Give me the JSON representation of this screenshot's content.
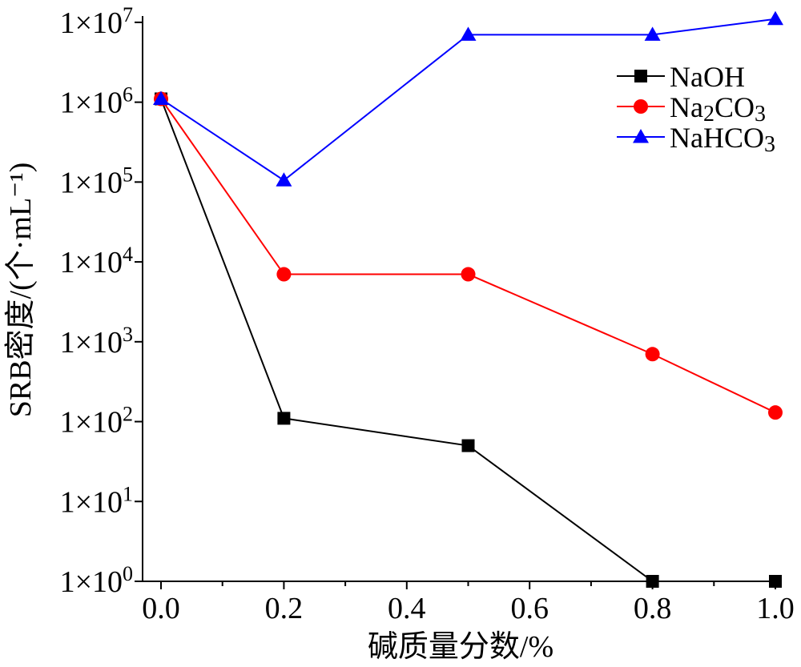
{
  "chart_data": {
    "type": "line",
    "xlabel": "碱质量分数/%",
    "ylabel": "SRB密度/(个·mL⁻¹)",
    "x_scale": "linear",
    "y_scale": "log",
    "xlim": [
      -0.03,
      1.0
    ],
    "ylim": [
      1,
      12000000
    ],
    "x_ticks": [
      {
        "value": 0.0,
        "label": "0.0"
      },
      {
        "value": 0.2,
        "label": "0.2"
      },
      {
        "value": 0.4,
        "label": "0.4"
      },
      {
        "value": 0.6,
        "label": "0.6"
      },
      {
        "value": 0.8,
        "label": "0.8"
      },
      {
        "value": 1.0,
        "label": "1.0"
      }
    ],
    "y_ticks": [
      {
        "value": 1,
        "base": "1×10",
        "exp": "0"
      },
      {
        "value": 10,
        "base": "1×10",
        "exp": "1"
      },
      {
        "value": 100,
        "base": "1×10",
        "exp": "2"
      },
      {
        "value": 1000,
        "base": "1×10",
        "exp": "3"
      },
      {
        "value": 10000,
        "base": "1×10",
        "exp": "4"
      },
      {
        "value": 100000,
        "base": "1×10",
        "exp": "5"
      },
      {
        "value": 1000000,
        "base": "1×10",
        "exp": "6"
      },
      {
        "value": 10000000,
        "base": "1×10",
        "exp": "7"
      }
    ],
    "x": [
      0.0,
      0.2,
      0.5,
      0.8,
      1.0
    ],
    "series": [
      {
        "name": "NaOH",
        "label_parts": [
          {
            "t": "NaOH"
          }
        ],
        "color": "#000000",
        "marker": "square",
        "values": [
          1100000,
          110,
          50,
          1,
          1
        ]
      },
      {
        "name": "Na2CO3",
        "label_parts": [
          {
            "t": "Na"
          },
          {
            "t": "2",
            "sub": true
          },
          {
            "t": "CO"
          },
          {
            "t": "3",
            "sub": true
          }
        ],
        "color": "#ff0000",
        "marker": "circle",
        "values": [
          1100000,
          7000,
          7000,
          700,
          130
        ]
      },
      {
        "name": "NaHCO3",
        "label_parts": [
          {
            "t": "NaHCO"
          },
          {
            "t": "3",
            "sub": true
          }
        ],
        "color": "#0000ff",
        "marker": "triangle",
        "values": [
          1100000,
          105000,
          7000000,
          7000000,
          11000000
        ]
      }
    ],
    "legend_position": "top-right",
    "grid": false
  }
}
